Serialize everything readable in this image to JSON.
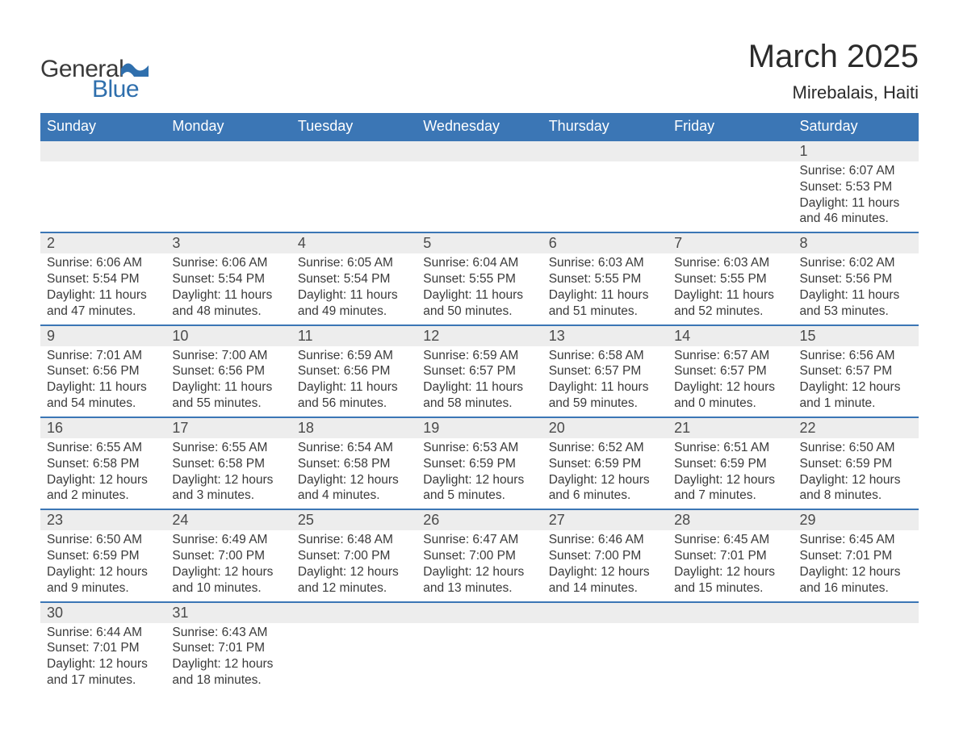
{
  "brand": {
    "name1": "General",
    "name2": "Blue"
  },
  "title": "March 2025",
  "location": "Mirebalais, Haiti",
  "colors": {
    "header_bg": "#3b76b5",
    "header_text": "#ffffff",
    "row_sep": "#3b76b5",
    "daynum_bg": "#ededed",
    "text": "#3a3a3a",
    "brand_blue": "#2f6fad",
    "page_bg": "#ffffff"
  },
  "typography": {
    "title_fontsize": 40,
    "location_fontsize": 22,
    "dayheader_fontsize": 18,
    "daynum_fontsize": 18,
    "body_fontsize": 15.5,
    "font_family": "Arial"
  },
  "layout": {
    "columns": 7,
    "rows": 6,
    "first_day_column": 6,
    "last_day": 31
  },
  "day_headers": [
    "Sunday",
    "Monday",
    "Tuesday",
    "Wednesday",
    "Thursday",
    "Friday",
    "Saturday"
  ],
  "days": [
    {
      "n": 1,
      "sunrise": "6:07 AM",
      "sunset": "5:53 PM",
      "daylight": "11 hours and 46 minutes."
    },
    {
      "n": 2,
      "sunrise": "6:06 AM",
      "sunset": "5:54 PM",
      "daylight": "11 hours and 47 minutes."
    },
    {
      "n": 3,
      "sunrise": "6:06 AM",
      "sunset": "5:54 PM",
      "daylight": "11 hours and 48 minutes."
    },
    {
      "n": 4,
      "sunrise": "6:05 AM",
      "sunset": "5:54 PM",
      "daylight": "11 hours and 49 minutes."
    },
    {
      "n": 5,
      "sunrise": "6:04 AM",
      "sunset": "5:55 PM",
      "daylight": "11 hours and 50 minutes."
    },
    {
      "n": 6,
      "sunrise": "6:03 AM",
      "sunset": "5:55 PM",
      "daylight": "11 hours and 51 minutes."
    },
    {
      "n": 7,
      "sunrise": "6:03 AM",
      "sunset": "5:55 PM",
      "daylight": "11 hours and 52 minutes."
    },
    {
      "n": 8,
      "sunrise": "6:02 AM",
      "sunset": "5:56 PM",
      "daylight": "11 hours and 53 minutes."
    },
    {
      "n": 9,
      "sunrise": "7:01 AM",
      "sunset": "6:56 PM",
      "daylight": "11 hours and 54 minutes."
    },
    {
      "n": 10,
      "sunrise": "7:00 AM",
      "sunset": "6:56 PM",
      "daylight": "11 hours and 55 minutes."
    },
    {
      "n": 11,
      "sunrise": "6:59 AM",
      "sunset": "6:56 PM",
      "daylight": "11 hours and 56 minutes."
    },
    {
      "n": 12,
      "sunrise": "6:59 AM",
      "sunset": "6:57 PM",
      "daylight": "11 hours and 58 minutes."
    },
    {
      "n": 13,
      "sunrise": "6:58 AM",
      "sunset": "6:57 PM",
      "daylight": "11 hours and 59 minutes."
    },
    {
      "n": 14,
      "sunrise": "6:57 AM",
      "sunset": "6:57 PM",
      "daylight": "12 hours and 0 minutes."
    },
    {
      "n": 15,
      "sunrise": "6:56 AM",
      "sunset": "6:57 PM",
      "daylight": "12 hours and 1 minute."
    },
    {
      "n": 16,
      "sunrise": "6:55 AM",
      "sunset": "6:58 PM",
      "daylight": "12 hours and 2 minutes."
    },
    {
      "n": 17,
      "sunrise": "6:55 AM",
      "sunset": "6:58 PM",
      "daylight": "12 hours and 3 minutes."
    },
    {
      "n": 18,
      "sunrise": "6:54 AM",
      "sunset": "6:58 PM",
      "daylight": "12 hours and 4 minutes."
    },
    {
      "n": 19,
      "sunrise": "6:53 AM",
      "sunset": "6:59 PM",
      "daylight": "12 hours and 5 minutes."
    },
    {
      "n": 20,
      "sunrise": "6:52 AM",
      "sunset": "6:59 PM",
      "daylight": "12 hours and 6 minutes."
    },
    {
      "n": 21,
      "sunrise": "6:51 AM",
      "sunset": "6:59 PM",
      "daylight": "12 hours and 7 minutes."
    },
    {
      "n": 22,
      "sunrise": "6:50 AM",
      "sunset": "6:59 PM",
      "daylight": "12 hours and 8 minutes."
    },
    {
      "n": 23,
      "sunrise": "6:50 AM",
      "sunset": "6:59 PM",
      "daylight": "12 hours and 9 minutes."
    },
    {
      "n": 24,
      "sunrise": "6:49 AM",
      "sunset": "7:00 PM",
      "daylight": "12 hours and 10 minutes."
    },
    {
      "n": 25,
      "sunrise": "6:48 AM",
      "sunset": "7:00 PM",
      "daylight": "12 hours and 12 minutes."
    },
    {
      "n": 26,
      "sunrise": "6:47 AM",
      "sunset": "7:00 PM",
      "daylight": "12 hours and 13 minutes."
    },
    {
      "n": 27,
      "sunrise": "6:46 AM",
      "sunset": "7:00 PM",
      "daylight": "12 hours and 14 minutes."
    },
    {
      "n": 28,
      "sunrise": "6:45 AM",
      "sunset": "7:01 PM",
      "daylight": "12 hours and 15 minutes."
    },
    {
      "n": 29,
      "sunrise": "6:45 AM",
      "sunset": "7:01 PM",
      "daylight": "12 hours and 16 minutes."
    },
    {
      "n": 30,
      "sunrise": "6:44 AM",
      "sunset": "7:01 PM",
      "daylight": "12 hours and 17 minutes."
    },
    {
      "n": 31,
      "sunrise": "6:43 AM",
      "sunset": "7:01 PM",
      "daylight": "12 hours and 18 minutes."
    }
  ],
  "labels": {
    "sunrise": "Sunrise: ",
    "sunset": "Sunset: ",
    "daylight": "Daylight: "
  }
}
